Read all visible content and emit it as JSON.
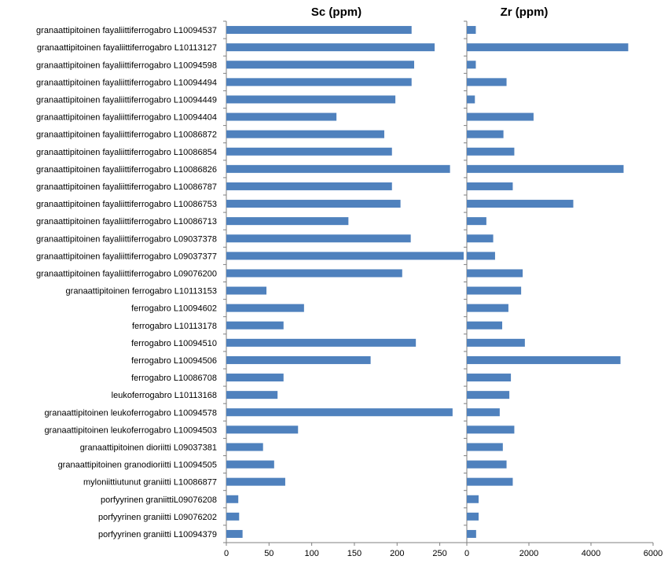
{
  "chart_data": {
    "type": "bar",
    "orientation": "horizontal",
    "categories": [
      "granaattipitoinen fayaliittiferrogabro L10094537",
      "granaattipitoinen fayaliittiferrogabro L10113127",
      "granaattipitoinen fayaliittiferrogabro L10094598",
      "granaattipitoinen fayaliittiferrogabro L10094494",
      "granaattipitoinen fayaliittiferrogabro L10094449",
      "granaattipitoinen fayaliittiferrogabro L10094404",
      "granaattipitoinen fayaliittiferrogabro L10086872",
      "granaattipitoinen fayaliittiferrogabro L10086854",
      "granaattipitoinen fayaliittiferrogabro L10086826",
      "granaattipitoinen fayaliittiferrogabro L10086787",
      "granaattipitoinen fayaliittiferrogabro L10086753",
      "granaattipitoinen fayaliittiferrogabro L10086713",
      "granaattipitoinen fayaliittiferrogabro L09037378",
      "granaattipitoinen fayaliittiferrogabro L09037377",
      "granaattipitoinen fayaliittiferrogabro L09076200",
      "granaattipitoinen ferrogabro L10113153",
      "ferrogabro L10094602",
      "ferrogabro L10113178",
      "ferrogabro L10094510",
      "ferrogabro L10094506",
      "ferrogabro L10086708",
      "leukoferrogabro L10113168",
      "granaattipitoinen leukoferrogabro L10094578",
      "granaattipitoinen leukoferrogabro L10094503",
      "granaattipitoinen dioriitti L09037381",
      "granaattipitoinen granodioriitti L10094505",
      "myloniittiutunut graniitti L10086877",
      "porfyyrinen graniittiL09076208",
      "porfyyrinen graniitti L09076202",
      "porfyyrinen graniitti L10094379"
    ],
    "panels": [
      {
        "title": "Sc (ppm)",
        "xlim": [
          0,
          278
        ],
        "ticks": [
          0,
          50,
          100,
          150,
          200,
          250
        ],
        "values": [
          217,
          244,
          220,
          217,
          198,
          129,
          185,
          194,
          262,
          194,
          204,
          143,
          216,
          278,
          206,
          47,
          91,
          67,
          222,
          169,
          67,
          60,
          265,
          84,
          43,
          56,
          69,
          14,
          15,
          19
        ]
      },
      {
        "title": "Zr (ppm)",
        "xlim": [
          0,
          6000
        ],
        "ticks": [
          0,
          2000,
          4000,
          6000
        ],
        "values": [
          290,
          5200,
          290,
          1280,
          260,
          2150,
          1180,
          1530,
          5050,
          1480,
          3430,
          630,
          850,
          910,
          1800,
          1750,
          1340,
          1140,
          1870,
          4950,
          1420,
          1370,
          1060,
          1530,
          1160,
          1280,
          1480,
          380,
          380,
          300
        ]
      }
    ]
  }
}
